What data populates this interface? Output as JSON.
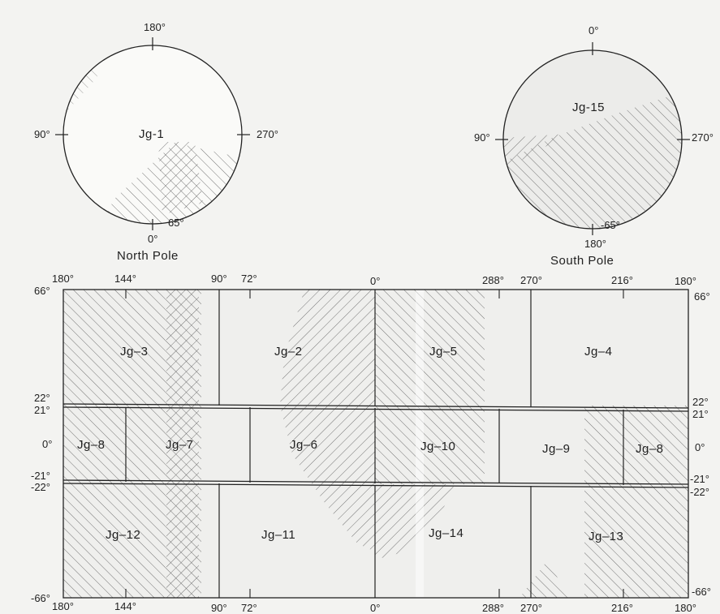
{
  "north_pole": {
    "caption": "North Pole",
    "quadrangle": "Jg-1",
    "lon_top": "180°",
    "lon_left": "90°",
    "lon_right": "270°",
    "lon_bottom": "0°",
    "lat_boundary": "65°"
  },
  "south_pole": {
    "caption": "South Pole",
    "quadrangle": "Jg-15",
    "lon_top": "0°",
    "lon_left": "90°",
    "lon_right": "270°",
    "lon_bottom": "180°",
    "lat_boundary": "-65°"
  },
  "longitude_labels": [
    "180°",
    "144°",
    "90°",
    "72°",
    "0°",
    "288°",
    "270°",
    "216°",
    "180°"
  ],
  "latitude_labels": {
    "top": "66°",
    "upper_north": "22°",
    "upper_south": "21°",
    "equator": "0°",
    "lower_north": "-21°",
    "lower_south": "-22°",
    "bottom": "-66°"
  },
  "quadrangles": {
    "jg2": "Jg–2",
    "jg3": "Jg–3",
    "jg4": "Jg–4",
    "jg5": "Jg–5",
    "jg6": "Jg–6",
    "jg7": "Jg–7",
    "jg8_left": "Jg–8",
    "jg8_right": "Jg–8",
    "jg9": "Jg–9",
    "jg10": "Jg–10",
    "jg11": "Jg–11",
    "jg12": "Jg–12",
    "jg13": "Jg–13",
    "jg14": "Jg–14"
  }
}
